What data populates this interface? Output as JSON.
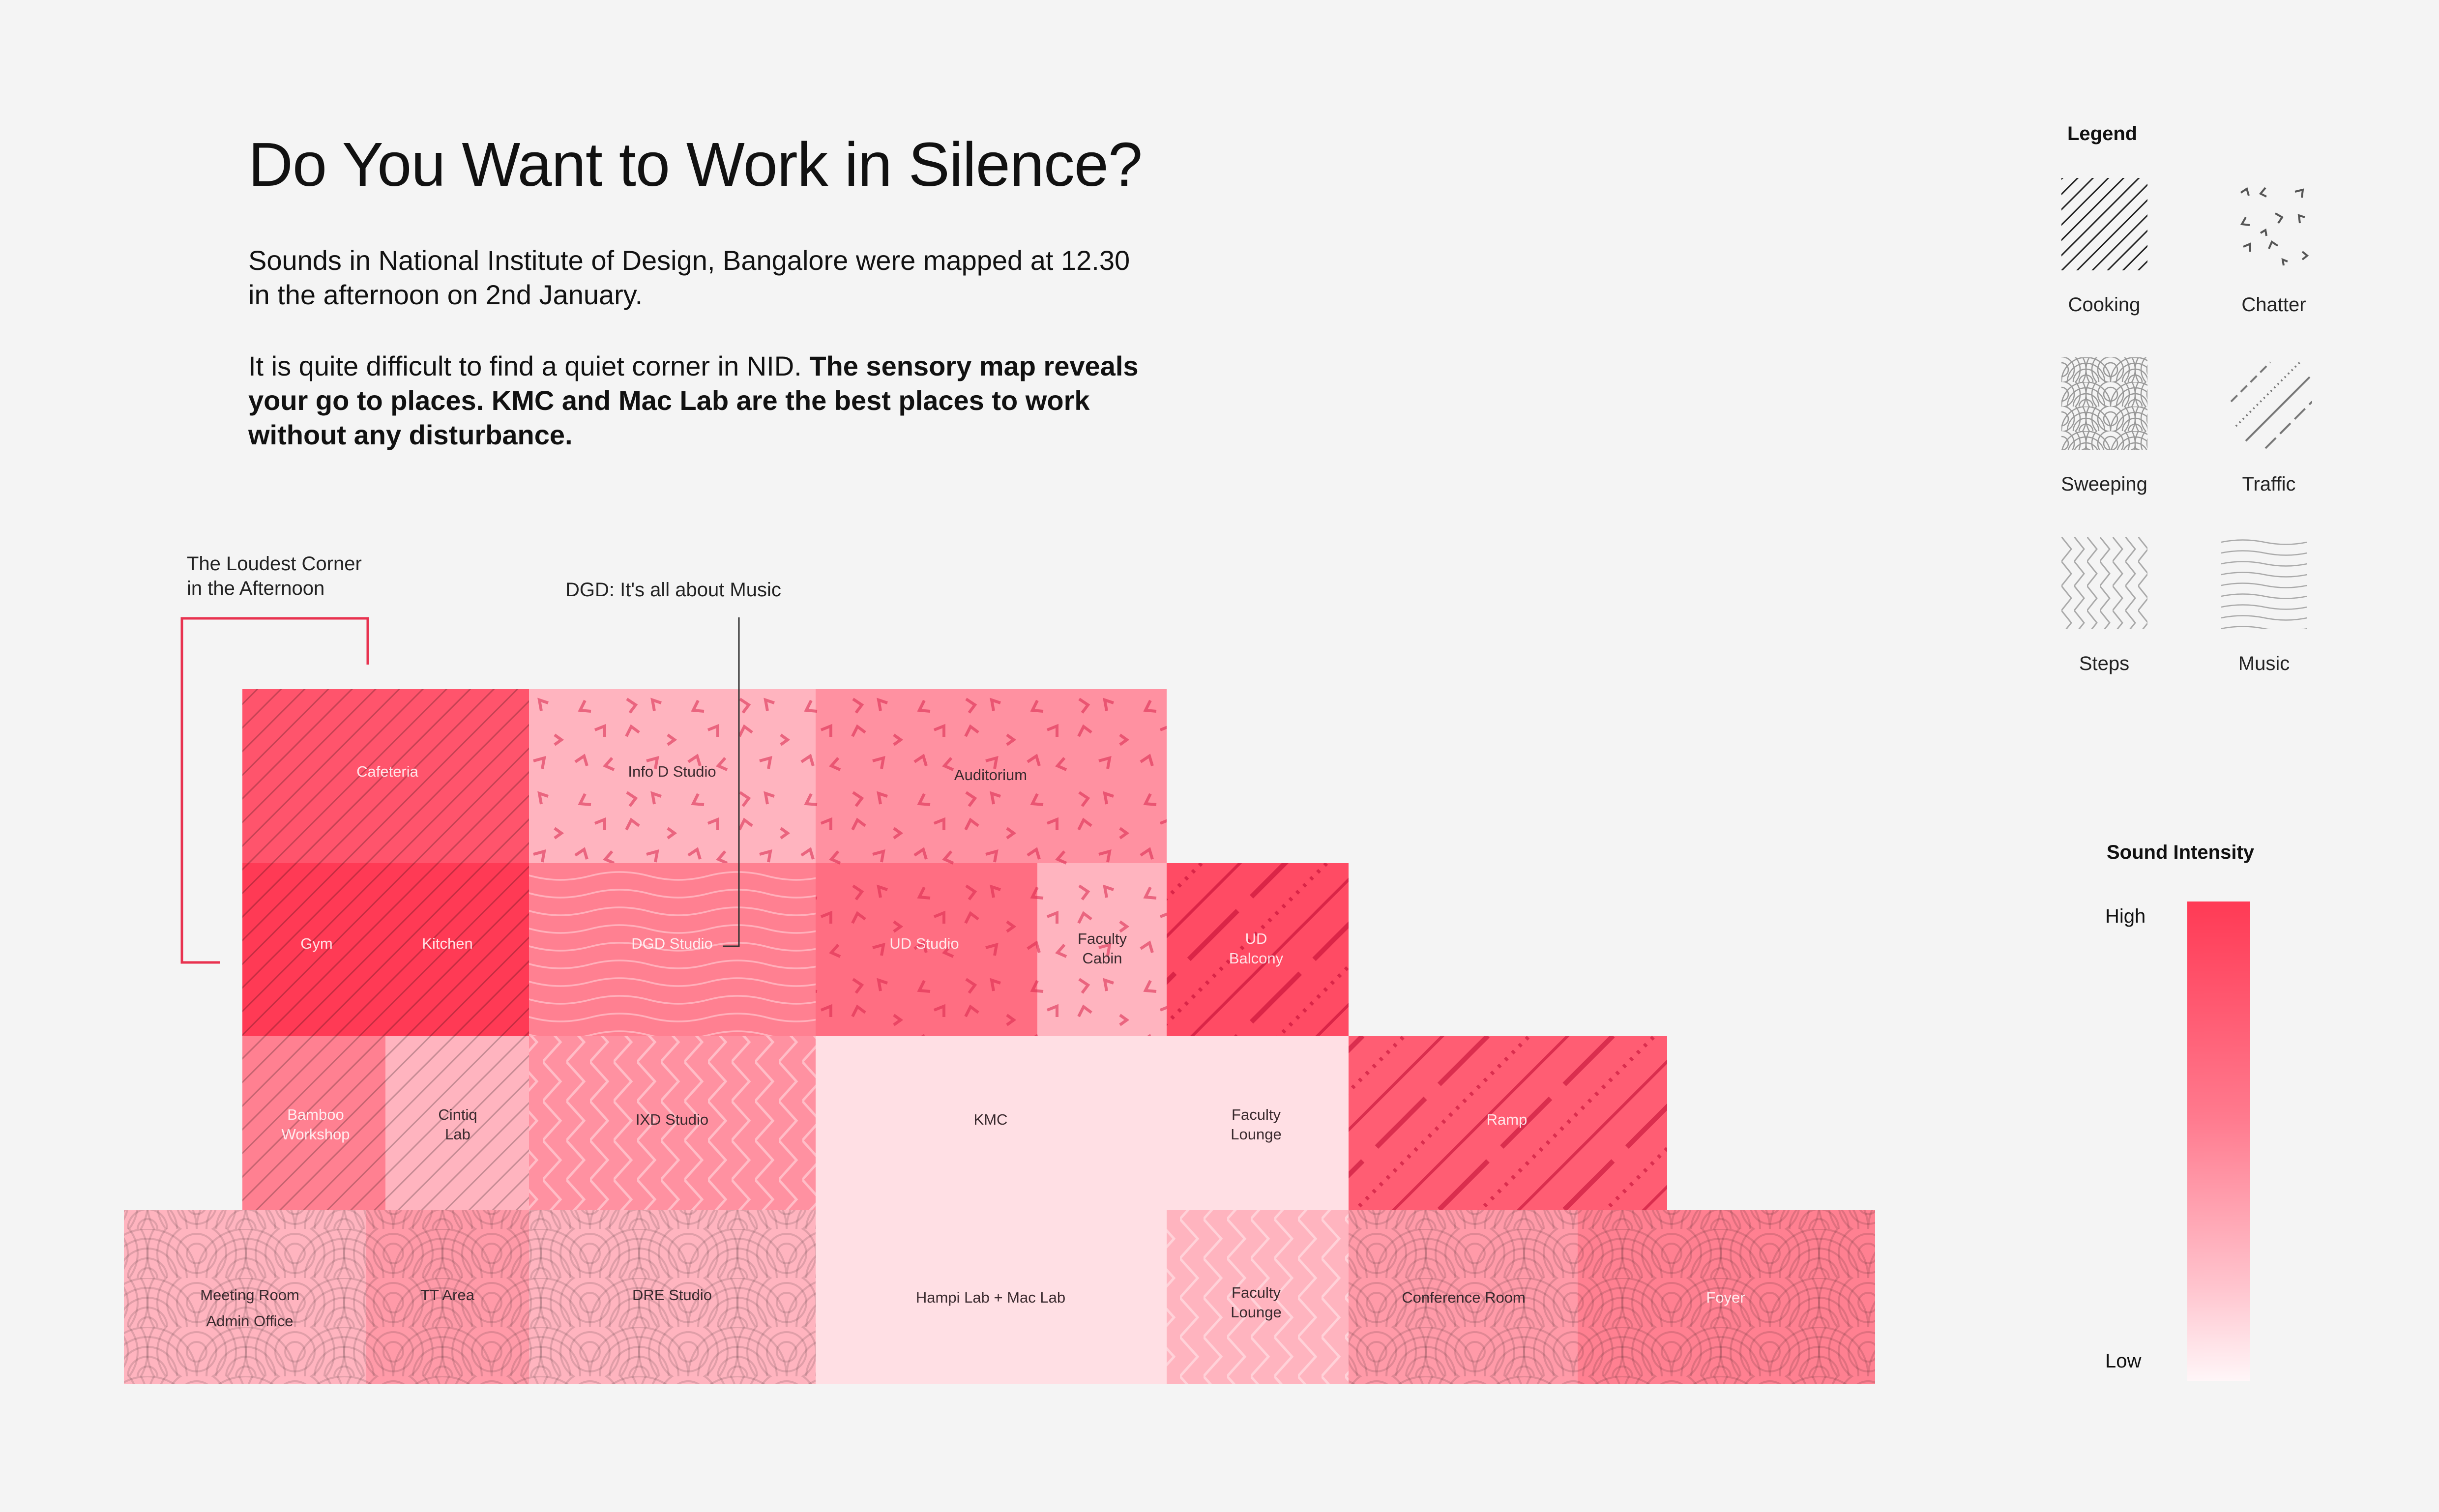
{
  "header": {
    "title": "Do You Want to Work in Silence?",
    "intro_line1": "Sounds in National Institute of Design, Bangalore were mapped at 12.30",
    "intro_line2": "in the afternoon on 2nd January.",
    "body_plain": "It is quite difficult to find a quiet corner in NID. ",
    "body_bold_line1": "The sensory map reveals",
    "body_bold_line2": "your go to places. KMC and Mac Lab are the best places to work",
    "body_bold_line3": "without any disturbance."
  },
  "annotations": {
    "loudest_line1": "The Loudest Corner",
    "loudest_line2": "in the Afternoon",
    "dgd": "DGD: It's all about Music"
  },
  "rooms": [
    {
      "name": "Cafeteria",
      "sound": "cooking",
      "intensity": 0.85
    },
    {
      "name": "Info D Studio",
      "sound": "chatter",
      "intensity": 0.3
    },
    {
      "name": "Auditorium",
      "sound": "chatter",
      "intensity": 0.5
    },
    {
      "name": "Gym",
      "sound": "cooking",
      "intensity": 1.0
    },
    {
      "name": "Kitchen",
      "sound": "cooking",
      "intensity": 1.0
    },
    {
      "name": "DGD Studio",
      "sound": "music",
      "intensity": 0.6
    },
    {
      "name": "UD Studio",
      "sound": "chatter",
      "intensity": 0.7
    },
    {
      "name": "Faculty Cabin",
      "sound": "chatter",
      "intensity": 0.3
    },
    {
      "name": "UD Balcony",
      "sound": "traffic",
      "intensity": 0.9
    },
    {
      "name": "Bamboo Workshop",
      "sound": "cooking",
      "intensity": 0.6
    },
    {
      "name": "Cintiq Lab",
      "sound": "cooking",
      "intensity": 0.3
    },
    {
      "name": "IXD Studio",
      "sound": "steps",
      "intensity": 0.5
    },
    {
      "name": "KMC",
      "sound": "none",
      "intensity": 0.05
    },
    {
      "name": "Faculty Lounge",
      "sound": "none",
      "intensity": 0.05
    },
    {
      "name": "Ramp",
      "sound": "traffic",
      "intensity": 0.8
    },
    {
      "name": "Meeting Room",
      "sound": "sweeping",
      "intensity": 0.3
    },
    {
      "name": "Admin Office",
      "sound": "sweeping",
      "intensity": 0.3
    },
    {
      "name": "TT Area",
      "sound": "sweeping",
      "intensity": 0.45
    },
    {
      "name": "DRE Studio",
      "sound": "sweeping",
      "intensity": 0.3
    },
    {
      "name": "Hampi Lab + Mac Lab",
      "sound": "none",
      "intensity": 0.05
    },
    {
      "name": "Faculty Lounge",
      "sound": "steps",
      "intensity": 0.3
    },
    {
      "name": "Conference Room",
      "sound": "sweeping",
      "intensity": 0.45
    },
    {
      "name": "Foyer",
      "sound": "sweeping",
      "intensity": 0.6
    }
  ],
  "legend": {
    "title": "Legend",
    "items": [
      {
        "label": "Cooking",
        "icon": "cooking-pattern-icon"
      },
      {
        "label": "Chatter",
        "icon": "chatter-pattern-icon"
      },
      {
        "label": "Sweeping",
        "icon": "sweeping-pattern-icon"
      },
      {
        "label": "Traffic",
        "icon": "traffic-pattern-icon"
      },
      {
        "label": "Steps",
        "icon": "steps-pattern-icon"
      },
      {
        "label": "Music",
        "icon": "music-pattern-icon"
      }
    ]
  },
  "intensity_scale": {
    "title": "Sound Intensity",
    "high": "High",
    "low": "Low",
    "high_color": "#ff3a55",
    "low_color": "#fff6f8"
  }
}
